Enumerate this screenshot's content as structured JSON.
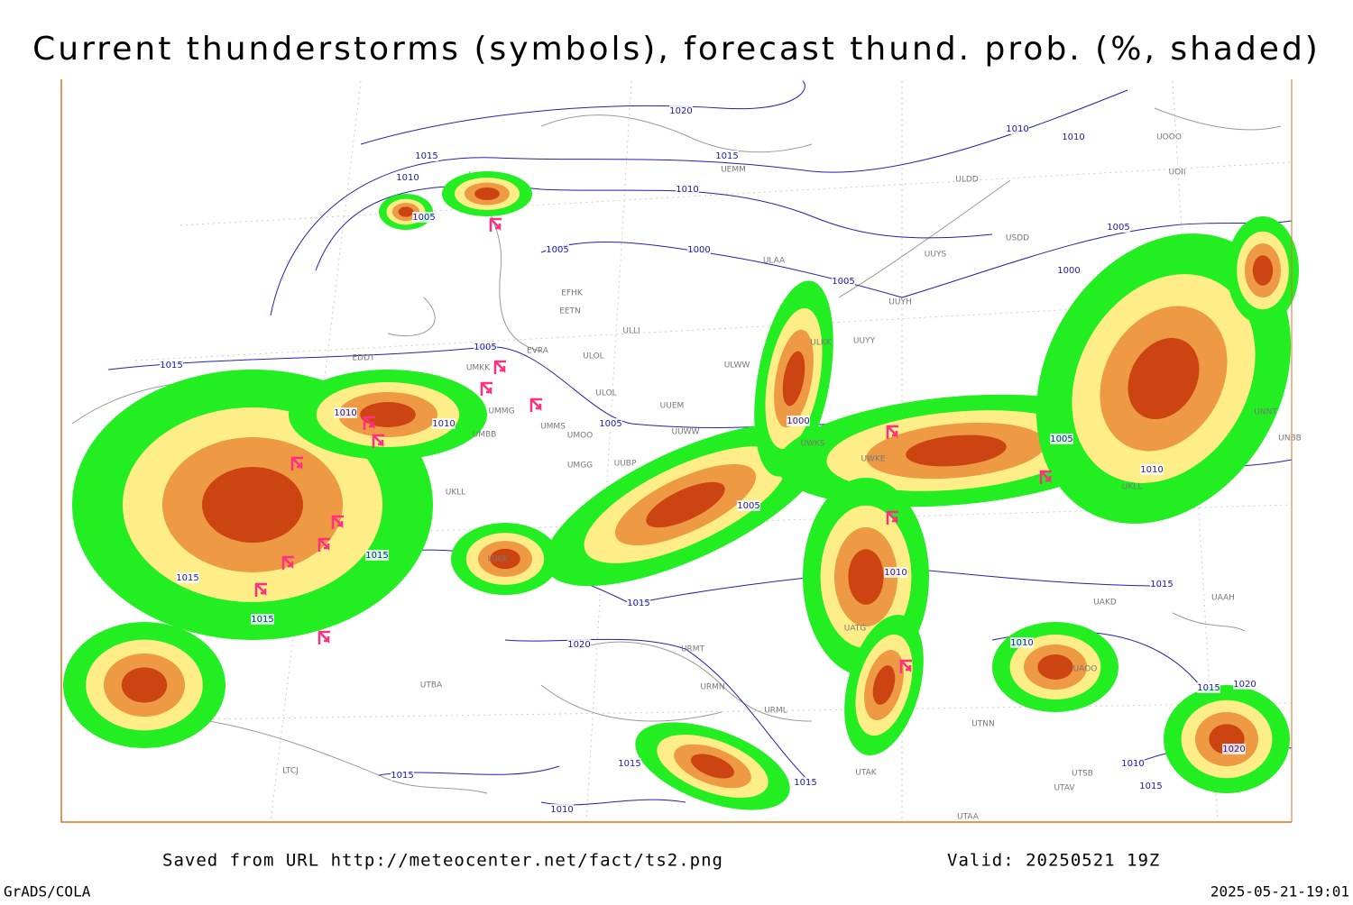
{
  "title": "Current thunderstorms (symbols), forecast thund. prob. (%, shaded)",
  "footer": {
    "source": "Saved from URL http://meteocenter.net/fact/ts2.png",
    "valid": "Valid: 20250521 19Z",
    "software": "GrADS/COLA",
    "timestamp": "2025-05-21-19:01"
  },
  "isobar_labels": [
    "1020",
    "1015",
    "1015",
    "1010",
    "1010",
    "1005",
    "1005",
    "1000",
    "1005",
    "1010",
    "1010",
    "1005",
    "1000",
    "1015",
    "1005",
    "1010",
    "1010",
    "1005",
    "1000",
    "1005",
    "1010",
    "1005",
    "1015",
    "1015",
    "1015",
    "1010",
    "1015",
    "1020",
    "1010",
    "1015",
    "1015",
    "1020",
    "1020",
    "1015",
    "1015",
    "1015",
    "1010",
    "1010",
    "1015"
  ],
  "station_codes": [
    "UEMM",
    "ULDD",
    "UOOO",
    "UOII",
    "UUYS",
    "USDD",
    "ULAA",
    "UUYH",
    "EFHK",
    "EETN",
    "ULLI",
    "UUYY",
    "ULKK",
    "EVRA",
    "ULOL",
    "ULWW",
    "EDDT",
    "UMKK",
    "ULOL",
    "UUEM",
    "UMMG",
    "UMMS",
    "UMOO",
    "UUWW",
    "UMBB",
    "UWKS",
    "UMGG",
    "UUBP",
    "UKLL",
    "UWKE",
    "UNNT",
    "UNBB",
    "LUKK",
    "UAKD",
    "UATG",
    "UAOO",
    "URML",
    "URMN",
    "UTAK",
    "UTAA",
    "UTSB",
    "UTAV",
    "UTNN",
    "UAAH",
    "URMT",
    "UTBA",
    "LTCJ",
    "UKLL"
  ]
}
